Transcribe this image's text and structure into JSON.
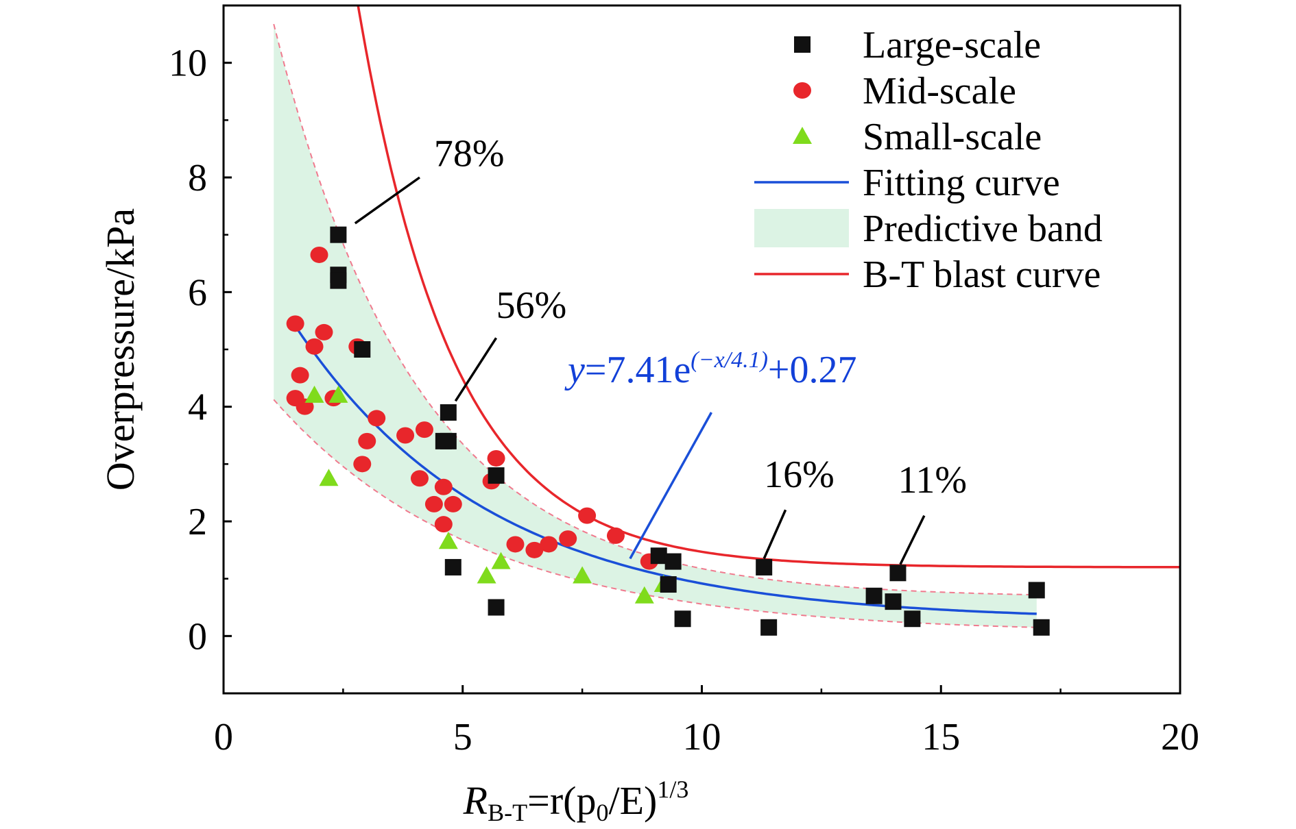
{
  "chart_data": {
    "type": "scatter",
    "title": "",
    "ylabel": "Overpressure/kPa",
    "xlabel": {
      "R": "R",
      "sub": "B-T",
      "mid": "=r(p",
      "p_sub": "0",
      "tail": "/E)",
      "sup": "1/3"
    },
    "xlim": [
      0,
      20
    ],
    "ylim": [
      -1,
      11
    ],
    "xticks": [
      0,
      5,
      10,
      15,
      20
    ],
    "yticks": [
      0,
      2,
      4,
      6,
      8,
      10
    ],
    "grid": false,
    "legend_position": "top-right",
    "legend": [
      {
        "id": "large",
        "label": "Large-scale",
        "kind": "square",
        "color": "#111111"
      },
      {
        "id": "mid",
        "label": "Mid-scale",
        "kind": "circle",
        "color": "#e8262b"
      },
      {
        "id": "small",
        "label": "Small-scale",
        "kind": "triangle",
        "color": "#7fdb1c"
      },
      {
        "id": "fit",
        "label": "Fitting curve",
        "kind": "line",
        "color": "#1a4fd8"
      },
      {
        "id": "band",
        "label": "Predictive band",
        "kind": "band",
        "color": "#dcf3e4"
      },
      {
        "id": "bt",
        "label": "B-T blast curve",
        "kind": "line",
        "color": "#e8262b"
      }
    ],
    "series": [
      {
        "name": "Large-scale",
        "marker": "square",
        "color": "#111111",
        "points": [
          [
            2.4,
            7.0
          ],
          [
            2.4,
            6.3
          ],
          [
            2.4,
            6.2
          ],
          [
            2.9,
            5.0
          ],
          [
            4.7,
            3.9
          ],
          [
            4.6,
            3.4
          ],
          [
            4.7,
            3.4
          ],
          [
            5.7,
            2.8
          ],
          [
            4.8,
            1.2
          ],
          [
            5.7,
            0.5
          ],
          [
            9.1,
            1.4
          ],
          [
            9.4,
            1.3
          ],
          [
            9.3,
            0.9
          ],
          [
            9.6,
            0.3
          ],
          [
            11.3,
            1.2
          ],
          [
            11.4,
            0.15
          ],
          [
            13.6,
            0.7
          ],
          [
            14.0,
            0.6
          ],
          [
            14.1,
            1.1
          ],
          [
            14.4,
            0.3
          ],
          [
            17.0,
            0.8
          ],
          [
            17.1,
            0.15
          ]
        ]
      },
      {
        "name": "Mid-scale",
        "marker": "circle",
        "color": "#e8262b",
        "points": [
          [
            2.0,
            6.65
          ],
          [
            1.5,
            5.45
          ],
          [
            2.1,
            5.3
          ],
          [
            1.9,
            5.05
          ],
          [
            2.8,
            5.05
          ],
          [
            1.6,
            4.55
          ],
          [
            1.5,
            4.15
          ],
          [
            1.7,
            4.0
          ],
          [
            2.3,
            4.15
          ],
          [
            3.2,
            3.8
          ],
          [
            3.8,
            3.5
          ],
          [
            4.2,
            3.6
          ],
          [
            3.0,
            3.4
          ],
          [
            2.9,
            3.0
          ],
          [
            4.1,
            2.75
          ],
          [
            4.6,
            2.6
          ],
          [
            4.4,
            2.3
          ],
          [
            4.8,
            2.3
          ],
          [
            4.6,
            1.95
          ],
          [
            5.7,
            3.1
          ],
          [
            5.6,
            2.7
          ],
          [
            6.1,
            1.6
          ],
          [
            6.5,
            1.5
          ],
          [
            6.8,
            1.6
          ],
          [
            7.2,
            1.7
          ],
          [
            7.6,
            2.1
          ],
          [
            8.2,
            1.75
          ],
          [
            8.9,
            1.3
          ]
        ]
      },
      {
        "name": "Small-scale",
        "marker": "triangle",
        "color": "#7fdb1c",
        "points": [
          [
            1.9,
            4.2
          ],
          [
            2.4,
            4.2
          ],
          [
            2.2,
            2.75
          ],
          [
            4.7,
            1.65
          ],
          [
            5.8,
            1.3
          ],
          [
            5.5,
            1.05
          ],
          [
            7.5,
            1.05
          ],
          [
            8.8,
            0.7
          ],
          [
            9.2,
            0.9
          ]
        ]
      }
    ],
    "fitting_curve": {
      "label": "Fitting curve",
      "a": 7.41,
      "b": 4.1,
      "c": 0.27,
      "x_range": [
        1.5,
        17.0
      ],
      "color": "#1a4fd8"
    },
    "predictive_band": {
      "label": "Predictive band",
      "x_range": [
        1.05,
        17.0
      ],
      "upper": {
        "a": 14.2,
        "b": 3.0,
        "c": 0.67
      },
      "lower": {
        "a": 5.2,
        "b": 4.3,
        "c": 0.05
      },
      "fill": "#dcf3e4",
      "edge": "#f07a8e"
    },
    "bt_curve": {
      "label": "B-T blast curve",
      "a": 40.0,
      "b": 2.0,
      "c": 1.2,
      "x_range": [
        2.0,
        20.0
      ],
      "color": "#e8262b"
    },
    "equation": {
      "y": "y",
      "mid": "=7.41e",
      "sup": "(−x/4.1)",
      "tail": "+0.27",
      "color": "#1240d8"
    },
    "annotations": [
      {
        "label": "78%",
        "line": [
          [
            2.75,
            7.2
          ],
          [
            4.1,
            8.0
          ]
        ],
        "text_at": [
          4.4,
          8.2
        ]
      },
      {
        "label": "56%",
        "line": [
          [
            4.85,
            4.1
          ],
          [
            5.7,
            5.2
          ]
        ],
        "text_at": [
          5.7,
          5.55
        ]
      },
      {
        "label": "16%",
        "line": [
          [
            11.3,
            1.35
          ],
          [
            11.75,
            2.2
          ]
        ],
        "text_at": [
          11.3,
          2.6
        ]
      },
      {
        "label": "11%",
        "line": [
          [
            14.15,
            1.25
          ],
          [
            14.65,
            2.1
          ]
        ],
        "text_at": [
          14.1,
          2.5
        ]
      },
      {
        "label": "",
        "line": [
          [
            8.5,
            1.35
          ],
          [
            10.2,
            3.9
          ]
        ],
        "text_at": null
      }
    ]
  }
}
